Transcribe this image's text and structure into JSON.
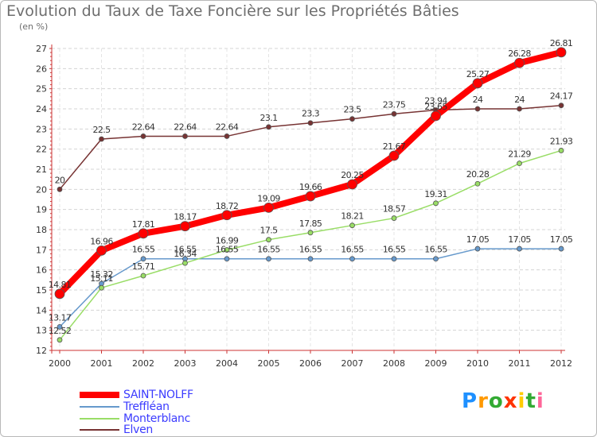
{
  "chart_data": {
    "type": "line",
    "title": "Evolution du Taux de Taxe Foncière sur les Propriétés Bâties",
    "subtitle": "(en %)",
    "x": [
      "2000",
      "2001",
      "2002",
      "2003",
      "2004",
      "2005",
      "2006",
      "2007",
      "2008",
      "2009",
      "2010",
      "2011",
      "2012"
    ],
    "ylim": [
      12,
      27
    ],
    "yticks": [
      "12",
      "13",
      "14",
      "15",
      "16",
      "17",
      "18",
      "19",
      "20",
      "21",
      "22",
      "23",
      "24",
      "25",
      "26",
      "27"
    ],
    "grid": "horizontal dashed",
    "legend_position": "bottom-left",
    "series": [
      {
        "name": "SAINT-NOLFF",
        "color": "#ff0000",
        "values": [
          14.81,
          16.96,
          17.81,
          18.17,
          18.72,
          19.09,
          19.66,
          20.25,
          21.67,
          23.65,
          25.27,
          26.28,
          26.81
        ],
        "labels": [
          "14.81",
          "16.96",
          "17.81",
          "18.17",
          "18.72",
          "19.09",
          "19.66",
          "20.25",
          "21.67",
          "23.65",
          "25.27",
          "26.28",
          "26.81"
        ]
      },
      {
        "name": "Treffléan",
        "color": "#6699cc",
        "values": [
          13.17,
          15.32,
          16.55,
          16.55,
          16.55,
          16.55,
          16.55,
          16.55,
          16.55,
          16.55,
          17.05,
          17.05,
          17.05
        ],
        "labels": [
          "13.17",
          "15.32",
          "16.55",
          "16.55",
          "16.55",
          "16.55",
          "16.55",
          "16.55",
          "16.55",
          "16.55",
          "17.05",
          "17.05",
          "17.05"
        ]
      },
      {
        "name": "Monterblanc",
        "color": "#99dd66",
        "values": [
          12.52,
          15.11,
          15.71,
          16.34,
          16.99,
          17.5,
          17.85,
          18.21,
          18.57,
          19.31,
          20.28,
          21.29,
          21.93
        ],
        "labels": [
          "12.52",
          "15.11",
          "15.71",
          "16.34",
          "16.99",
          "17.5",
          "17.85",
          "18.21",
          "18.57",
          "19.31",
          "20.28",
          "21.29",
          "21.93"
        ]
      },
      {
        "name": "Elven",
        "color": "#773333",
        "values": [
          20,
          22.5,
          22.64,
          22.64,
          22.64,
          23.1,
          23.3,
          23.5,
          23.75,
          23.94,
          24,
          24,
          24.17
        ],
        "labels": [
          "20",
          "22.5",
          "22.64",
          "22.64",
          "22.64",
          "23.1",
          "23.3",
          "23.5",
          "23.75",
          "23.94",
          "24",
          "24",
          "24.17"
        ]
      }
    ]
  },
  "logo": {
    "letters": [
      "P",
      "r",
      "o",
      "x",
      "i",
      "t",
      "i"
    ],
    "colors": [
      "#1e90ff",
      "#ff9900",
      "#33aa33",
      "#ff3300",
      "#ffcc00",
      "#33aa33",
      "#ff6699"
    ]
  }
}
